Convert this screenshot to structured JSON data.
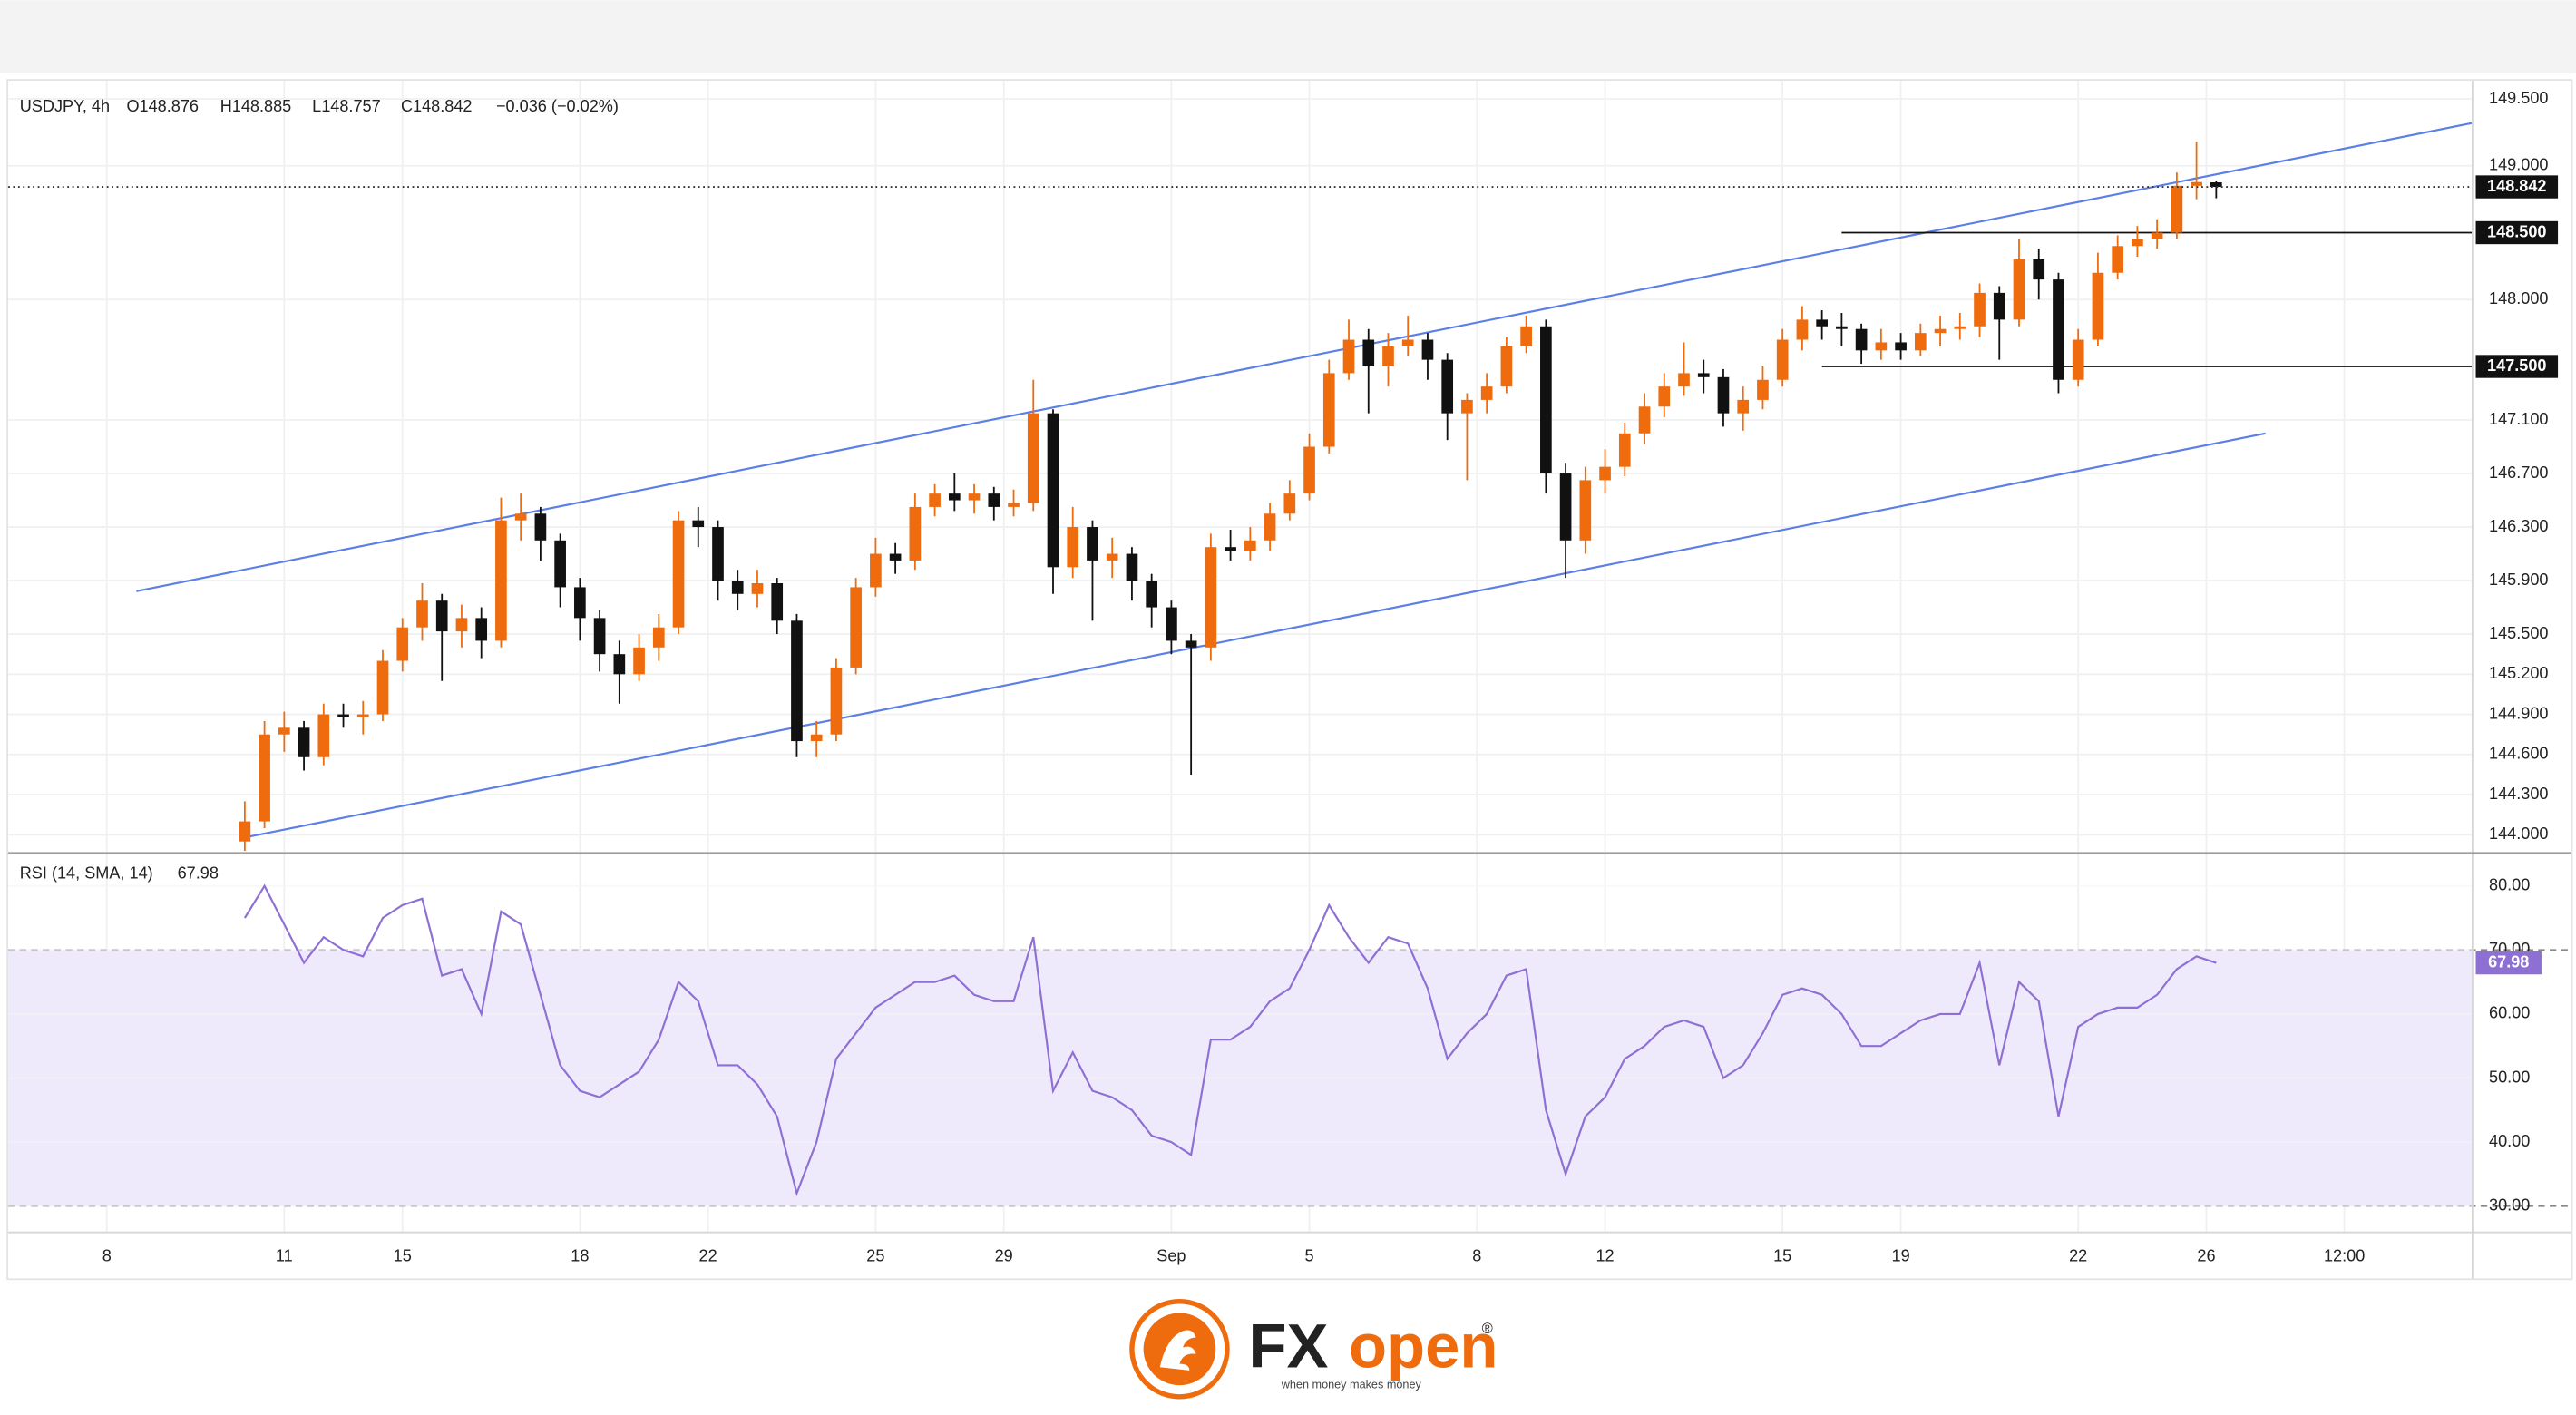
{
  "chart_data": {
    "type": "candlestick",
    "legend_items": [
      "USDJPY, 4h",
      "O148.876",
      "H148.885",
      "L148.757",
      "C148.842",
      "−0.036 (−0.02%)"
    ],
    "xlim": [
      0,
      250
    ],
    "xticks": [
      {
        "value": 10,
        "label": "8"
      },
      {
        "value": 28,
        "label": "11"
      },
      {
        "value": 40,
        "label": "15"
      },
      {
        "value": 58,
        "label": "18"
      },
      {
        "value": 71,
        "label": "22"
      },
      {
        "value": 88,
        "label": "25"
      },
      {
        "value": 101,
        "label": "29"
      },
      {
        "value": 118,
        "label": "Sep"
      },
      {
        "value": 132,
        "label": "5"
      },
      {
        "value": 149,
        "label": "8"
      },
      {
        "value": 162,
        "label": "12"
      },
      {
        "value": 180,
        "label": "15"
      },
      {
        "value": 192,
        "label": "19"
      },
      {
        "value": 210,
        "label": "22"
      },
      {
        "value": 223,
        "label": "26"
      },
      {
        "value": 237,
        "label": "12:00"
      }
    ],
    "ylim": [
      143.877,
      149.623
    ],
    "yticks": [
      {
        "value": 149.5,
        "label": "149.500"
      },
      {
        "value": 149.0,
        "label": "149.000"
      },
      {
        "value": 148.0,
        "label": "148.000"
      },
      {
        "value": 147.1,
        "label": "147.100"
      },
      {
        "value": 146.7,
        "label": "146.700"
      },
      {
        "value": 146.3,
        "label": "146.300"
      },
      {
        "value": 145.9,
        "label": "145.900"
      },
      {
        "value": 145.5,
        "label": "145.500"
      },
      {
        "value": 145.2,
        "label": "145.200"
      },
      {
        "value": 144.9,
        "label": "144.900"
      },
      {
        "value": 144.6,
        "label": "144.600"
      },
      {
        "value": 144.3,
        "label": "144.300"
      },
      {
        "value": 144.0,
        "label": "144.000"
      }
    ],
    "grid": true,
    "up_color": "#ef6c0e",
    "down_color": "#111111",
    "x": [
      24,
      26,
      28,
      30,
      32,
      34,
      36,
      38,
      40,
      42,
      44,
      46,
      48,
      50,
      52,
      54,
      56,
      58,
      60,
      62,
      64,
      66,
      68,
      70,
      72,
      74,
      76,
      78,
      80,
      82,
      84,
      86,
      88,
      90,
      92,
      94,
      96,
      98,
      100,
      102,
      104,
      106,
      108,
      110,
      112,
      114,
      116,
      118,
      120,
      122,
      124,
      126,
      128,
      130,
      132,
      134,
      136,
      138,
      140,
      142,
      144,
      146,
      148,
      150,
      152,
      154,
      156,
      158,
      160,
      162,
      164,
      166,
      168,
      170,
      172,
      174,
      176,
      178,
      180,
      182,
      184,
      186,
      188,
      190,
      192,
      194,
      196,
      198,
      200,
      202,
      204,
      206,
      208,
      210,
      212,
      214,
      216,
      218,
      220,
      222,
      224
    ],
    "open": [
      143.95,
      144.1,
      144.75,
      144.8,
      144.58,
      144.9,
      144.88,
      144.9,
      145.3,
      145.55,
      145.75,
      145.52,
      145.62,
      145.45,
      146.35,
      146.4,
      146.2,
      145.85,
      145.62,
      145.35,
      145.2,
      145.4,
      145.55,
      146.35,
      146.3,
      145.9,
      145.8,
      145.88,
      145.6,
      144.7,
      144.75,
      145.25,
      145.85,
      146.1,
      146.05,
      146.45,
      146.55,
      146.5,
      146.55,
      146.45,
      146.48,
      147.15,
      146.0,
      146.3,
      146.05,
      146.1,
      145.9,
      145.7,
      145.45,
      145.4,
      146.15,
      146.12,
      146.2,
      146.4,
      146.55,
      146.9,
      147.45,
      147.7,
      147.5,
      147.65,
      147.7,
      147.55,
      147.15,
      147.25,
      147.35,
      147.65,
      147.8,
      146.7,
      146.2,
      146.65,
      146.75,
      147.0,
      147.2,
      147.35,
      147.45,
      147.42,
      147.15,
      147.25,
      147.4,
      147.7,
      147.85,
      147.8,
      147.78,
      147.62,
      147.68,
      147.62,
      147.75,
      147.78,
      147.8,
      148.05,
      147.85,
      148.3,
      148.15,
      147.4,
      147.7,
      148.2,
      148.4,
      148.45,
      148.5,
      148.85,
      148.876
    ],
    "high": [
      144.25,
      144.85,
      144.92,
      144.85,
      144.98,
      144.98,
      145.0,
      145.38,
      145.62,
      145.88,
      145.8,
      145.72,
      145.7,
      146.52,
      146.55,
      146.45,
      146.25,
      145.92,
      145.68,
      145.45,
      145.5,
      145.65,
      146.42,
      146.45,
      146.35,
      145.98,
      145.98,
      145.92,
      145.65,
      144.85,
      145.32,
      145.92,
      146.22,
      146.18,
      146.55,
      146.62,
      146.7,
      146.62,
      146.6,
      146.58,
      147.4,
      147.18,
      146.45,
      146.35,
      146.22,
      146.15,
      145.95,
      145.75,
      145.5,
      146.25,
      146.28,
      146.3,
      146.48,
      146.65,
      147.0,
      147.55,
      147.85,
      147.78,
      147.75,
      147.88,
      147.75,
      147.6,
      147.3,
      147.45,
      147.72,
      147.88,
      147.85,
      146.78,
      146.75,
      146.88,
      147.08,
      147.3,
      147.45,
      147.68,
      147.55,
      147.48,
      147.35,
      147.5,
      147.78,
      147.95,
      147.92,
      147.9,
      147.82,
      147.78,
      147.75,
      147.82,
      147.88,
      147.9,
      148.12,
      148.1,
      148.45,
      148.38,
      148.2,
      147.78,
      148.35,
      148.48,
      148.55,
      148.6,
      148.95,
      149.18,
      148.885
    ],
    "low": [
      143.88,
      144.05,
      144.62,
      144.48,
      144.52,
      144.8,
      144.75,
      144.85,
      145.22,
      145.45,
      145.15,
      145.4,
      145.32,
      145.4,
      146.2,
      146.05,
      145.7,
      145.45,
      145.22,
      144.98,
      145.15,
      145.3,
      145.5,
      146.15,
      145.75,
      145.68,
      145.7,
      145.5,
      144.58,
      144.58,
      144.7,
      145.2,
      145.78,
      145.95,
      145.98,
      146.38,
      146.42,
      146.4,
      146.35,
      146.38,
      146.42,
      145.8,
      145.92,
      145.6,
      145.92,
      145.75,
      145.55,
      145.35,
      144.45,
      145.3,
      146.05,
      146.05,
      146.12,
      146.35,
      146.5,
      146.85,
      147.4,
      147.15,
      147.35,
      147.58,
      147.4,
      146.95,
      146.65,
      147.15,
      147.3,
      147.6,
      146.55,
      145.92,
      146.1,
      146.55,
      146.68,
      146.92,
      147.12,
      147.28,
      147.3,
      147.05,
      147.02,
      147.18,
      147.35,
      147.62,
      147.7,
      147.65,
      147.52,
      147.55,
      147.55,
      147.58,
      147.65,
      147.7,
      147.72,
      147.55,
      147.8,
      148.0,
      147.3,
      147.35,
      147.65,
      148.15,
      148.32,
      148.38,
      148.45,
      148.75,
      148.757
    ],
    "close": [
      144.1,
      144.75,
      144.8,
      144.58,
      144.9,
      144.88,
      144.9,
      145.3,
      145.55,
      145.75,
      145.52,
      145.62,
      145.45,
      146.35,
      146.4,
      146.2,
      145.85,
      145.62,
      145.35,
      145.2,
      145.4,
      145.55,
      146.35,
      146.3,
      145.9,
      145.8,
      145.88,
      145.6,
      144.7,
      144.75,
      145.25,
      145.85,
      146.1,
      146.05,
      146.45,
      146.55,
      146.5,
      146.55,
      146.45,
      146.48,
      147.15,
      146.0,
      146.3,
      146.05,
      146.1,
      145.9,
      145.7,
      145.45,
      145.4,
      146.15,
      146.12,
      146.2,
      146.4,
      146.55,
      146.9,
      147.45,
      147.7,
      147.5,
      147.65,
      147.7,
      147.55,
      147.15,
      147.25,
      147.35,
      147.65,
      147.8,
      146.7,
      146.2,
      146.65,
      146.75,
      147.0,
      147.2,
      147.35,
      147.45,
      147.42,
      147.15,
      147.25,
      147.4,
      147.7,
      147.85,
      147.8,
      147.78,
      147.62,
      147.68,
      147.62,
      147.75,
      147.78,
      147.8,
      148.05,
      147.85,
      148.3,
      148.15,
      147.4,
      147.7,
      148.2,
      148.4,
      148.45,
      148.5,
      148.85,
      148.878,
      148.842
    ],
    "trendlines": [
      {
        "x": [
          13,
          250
        ],
        "y": [
          145.82,
          149.32
        ]
      },
      {
        "x": [
          24,
          229
        ],
        "y": [
          143.98,
          147.0
        ]
      }
    ],
    "trendline_color": "#5b7fe6",
    "levels": [
      {
        "value": 148.5,
        "label": "148.500",
        "from_x": 186
      },
      {
        "value": 147.5,
        "label": "147.500",
        "from_x": 184
      }
    ],
    "rsi": {
      "label": "RSI (14, SMA, 14)",
      "color": "#8e6fd4",
      "ylim": [
        25.9,
        84.9
      ],
      "yticks": [
        {
          "value": 80,
          "label": "80.00"
        },
        {
          "value": 70,
          "label": "70.00"
        },
        {
          "value": 60,
          "label": "60.00"
        },
        {
          "value": 50,
          "label": "50.00"
        },
        {
          "value": 40,
          "label": "40.00"
        },
        {
          "value": 30,
          "label": "30.00"
        }
      ],
      "band": [
        30,
        70
      ],
      "values": [
        75,
        80,
        74,
        68,
        72,
        70,
        69,
        75,
        77,
        78,
        66,
        67,
        60,
        76,
        74,
        63,
        52,
        48,
        47,
        49,
        51,
        56,
        65,
        62,
        52,
        52,
        49,
        44,
        32,
        40,
        53,
        57,
        61,
        63,
        65,
        65,
        66,
        63,
        62,
        62,
        72,
        48,
        54,
        48,
        47,
        45,
        41,
        40,
        38,
        56,
        56,
        58,
        62,
        64,
        70,
        77,
        72,
        68,
        72,
        71,
        64,
        53,
        57,
        60,
        66,
        67,
        45,
        35,
        44,
        47,
        53,
        55,
        58,
        59,
        58,
        50,
        52,
        57,
        63,
        64,
        63,
        60,
        55,
        55,
        57,
        59,
        60,
        60,
        68,
        52,
        65,
        62,
        44,
        58,
        60,
        61,
        61,
        63,
        67,
        69,
        67.98
      ]
    }
  },
  "branding": {
    "name_parts": [
      "FX",
      "open"
    ],
    "registered": "®",
    "tagline": "when money makes money"
  }
}
